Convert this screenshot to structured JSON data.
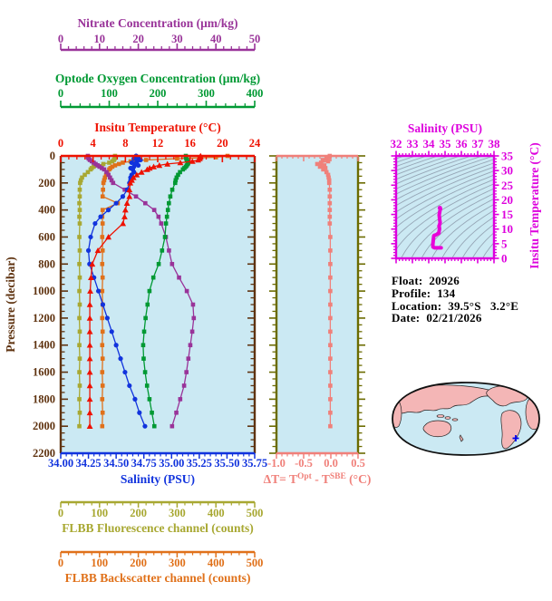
{
  "colors": {
    "nitrate": "#993399",
    "oxygen": "#009933",
    "temperature": "#ee1100",
    "pressure_axis": "#5f3310",
    "salinity": "#1133dd",
    "fluorescence": "#a8a832",
    "backscatter": "#e0711a",
    "delta_t": "#f0807a",
    "delta_y_axis": "#6b6b00",
    "ts": "#e800d8",
    "ts_axis": "#dd00dd",
    "panel_bg": "#cbe9f3",
    "contour": "#96a6b6",
    "map_land": "#f4b6b6",
    "map_ocean": "#cbe9f3",
    "map_outline": "#111111",
    "marker_blue": "#0000ee",
    "info_text": "#000000"
  },
  "figure": {
    "main_plot": {
      "pressure_axis": {
        "title": "Pressure (decibar)",
        "tick_values": [
          0,
          200,
          400,
          600,
          800,
          1000,
          1200,
          1400,
          1600,
          1800,
          2000,
          2200
        ],
        "tick_labels": [
          "0",
          "200",
          "400",
          "600",
          "800",
          "1000",
          "1200",
          "1400",
          "1600",
          "1800",
          "2000",
          "2200"
        ],
        "minor_per_gap": 3
      },
      "top_axes": [
        {
          "id": "nitrate",
          "title": "Nitrate Concentration (μm/kg)",
          "range": [
            0,
            50
          ],
          "tick_values": [
            0,
            10,
            20,
            30,
            40,
            50
          ],
          "tick_labels": [
            "0",
            "10",
            "20",
            "30",
            "40",
            "50"
          ],
          "minor_per_gap": 4
        },
        {
          "id": "oxygen",
          "title": "Optode Oxygen Concentration (μm/kg)",
          "range": [
            0,
            400
          ],
          "tick_values": [
            0,
            100,
            200,
            300,
            400
          ],
          "tick_labels": [
            "0",
            "100",
            "200",
            "300",
            "400"
          ],
          "minor_per_gap": 4
        },
        {
          "id": "temperature",
          "title": "Insitu Temperature (°C)",
          "range": [
            0,
            24
          ],
          "tick_values": [
            0,
            4,
            8,
            12,
            16,
            20,
            24
          ],
          "tick_labels": [
            "0",
            "4",
            "8",
            "12",
            "16",
            "20",
            "24"
          ],
          "minor_per_gap": 3
        }
      ],
      "bottom_axes": [
        {
          "id": "salinity",
          "title": "Salinity (PSU)",
          "range": [
            34.0,
            35.75
          ],
          "tick_values": [
            34.0,
            34.25,
            34.5,
            34.75,
            35.0,
            35.25,
            35.5,
            35.75
          ],
          "tick_labels": [
            "34.00",
            "34.25",
            "34.50",
            "34.75",
            "35.00",
            "35.25",
            "35.50",
            "35.75"
          ],
          "minor_per_gap": 4
        },
        {
          "id": "fluorescence",
          "title": "FLBB Fluorescence channel (counts)",
          "range": [
            0,
            500
          ],
          "tick_values": [
            0,
            100,
            200,
            300,
            400,
            500
          ],
          "tick_labels": [
            "0",
            "100",
            "200",
            "300",
            "400",
            "500"
          ],
          "minor_per_gap": 4
        },
        {
          "id": "backscatter",
          "title": "FLBB Backscatter channel (counts)",
          "range": [
            0,
            500
          ],
          "tick_values": [
            0,
            100,
            200,
            300,
            400,
            500
          ],
          "tick_labels": [
            "0",
            "100",
            "200",
            "300",
            "400",
            "500"
          ],
          "minor_per_gap": 4
        }
      ]
    },
    "delta_panel": {
      "x_range": [
        -1.0,
        0.5
      ],
      "tick_values": [
        -1.0,
        -0.5,
        0.0,
        0.5
      ],
      "tick_labels": [
        "-1.0",
        "-0.5",
        "0.0",
        "0.5"
      ],
      "minor_per_gap": 4,
      "title_parts": {
        "t1": "ΔT= T",
        "sup1": "Opt",
        "t2": " - T",
        "sup2": "SBE",
        "t3": " (°C)"
      }
    },
    "ts_panel": {
      "x_axis": {
        "title": "Salinity (PSU)",
        "range": [
          32,
          38
        ],
        "tick_values": [
          32,
          33,
          34,
          35,
          36,
          37,
          38
        ],
        "tick_labels": [
          "32",
          "33",
          "34",
          "35",
          "36",
          "37",
          "38"
        ],
        "minor_per_gap": 4
      },
      "y_axis": {
        "title": "Insitu Temperature (°C)",
        "range": [
          0,
          35
        ],
        "tick_values": [
          0,
          5,
          10,
          15,
          20,
          25,
          30,
          35
        ],
        "tick_labels": [
          "0",
          "5",
          "10",
          "15",
          "20",
          "25",
          "30",
          "35"
        ],
        "minor_per_gap": 4
      },
      "contour_sigma": {
        "min": 18,
        "max": 31,
        "step": 0.5
      }
    },
    "info": {
      "lines": [
        {
          "label": "Float:",
          "value": "20926"
        },
        {
          "label": "Profile:",
          "value": "134"
        },
        {
          "label": "Location:",
          "value": "39.5°S   3.2°E"
        },
        {
          "label": "Date:",
          "value": "02/21/2026"
        }
      ]
    }
  },
  "chart_data": {
    "type": "line",
    "description": "Argo float vertical profiles vs pressure (left), Optode-SBE temperature difference vs pressure (middle), T-S diagram with density contours (right), float location map (bottom right)",
    "pressure_db": [
      0,
      10,
      20,
      30,
      40,
      50,
      60,
      70,
      80,
      90,
      100,
      120,
      140,
      160,
      180,
      200,
      250,
      300,
      350,
      400,
      450,
      500,
      600,
      700,
      800,
      900,
      1000,
      1100,
      1200,
      1300,
      1400,
      1500,
      1600,
      1700,
      1800,
      1900,
      2000
    ],
    "series": [
      {
        "name": "Insitu Temperature (°C)",
        "color_key": "temperature",
        "marker": "triangle",
        "x_range": [
          0,
          24
        ],
        "values": [
          17.3,
          17.3,
          17.2,
          17.0,
          16.3,
          14.8,
          13.2,
          12.2,
          11.5,
          11.0,
          10.7,
          10.0,
          9.4,
          9.0,
          8.8,
          8.6,
          8.5,
          8.5,
          8.2,
          8.0,
          7.9,
          7.7,
          5.9,
          4.6,
          3.9,
          3.75,
          3.65,
          3.6,
          3.6,
          3.6,
          3.6,
          3.6,
          3.6,
          3.6,
          3.6,
          3.6,
          3.6
        ]
      },
      {
        "name": "Salinity (PSU)",
        "color_key": "salinity",
        "marker": "circle",
        "x_range": [
          34.0,
          35.75
        ],
        "values": [
          34.68,
          34.7,
          34.66,
          34.72,
          34.69,
          34.64,
          34.67,
          34.7,
          34.66,
          34.63,
          34.65,
          34.66,
          34.64,
          34.63,
          34.63,
          34.62,
          34.6,
          34.56,
          34.5,
          34.43,
          34.36,
          34.31,
          34.27,
          34.25,
          34.26,
          34.3,
          34.34,
          34.38,
          34.42,
          34.46,
          34.5,
          34.54,
          34.58,
          34.62,
          34.67,
          34.71,
          34.76
        ]
      },
      {
        "name": "Nitrate Concentration (μm/kg)",
        "color_key": "nitrate",
        "marker": "square",
        "x_range": [
          0,
          50
        ],
        "values": [
          7.0,
          7.0,
          7.2,
          7.5,
          8.0,
          8.5,
          9.0,
          9.5,
          10.0,
          10.6,
          11.2,
          11.8,
          12.3,
          12.7,
          13.1,
          13.5,
          16.5,
          19.4,
          21.8,
          24.1,
          25.2,
          25.9,
          27.1,
          27.9,
          28.7,
          30.5,
          32.5,
          34.1,
          34.3,
          33.9,
          33.4,
          32.9,
          32.4,
          31.8,
          30.8,
          29.8,
          28.7
        ]
      },
      {
        "name": "Optode Oxygen Concentration (μm/kg)",
        "color_key": "oxygen",
        "marker": "square",
        "x_range": [
          0,
          400
        ],
        "values": [
          258,
          258,
          259,
          260,
          262,
          263,
          262,
          260,
          258,
          255,
          252,
          246,
          242,
          239,
          237,
          236,
          230,
          226,
          223,
          221,
          219,
          217,
          215,
          209,
          202,
          191,
          183,
          179,
          175,
          172,
          170,
          171,
          174,
          178,
          183,
          188,
          193
        ]
      },
      {
        "name": "FLBB Fluorescence channel (counts)",
        "color_key": "fluorescence",
        "marker": "square",
        "x_range": [
          0,
          500
        ],
        "values": [
          140,
          140,
          139,
          137,
          133,
          125,
          110,
          95,
          85,
          80,
          77,
          70,
          62,
          55,
          52,
          50,
          49,
          49,
          48,
          49,
          48,
          49,
          48,
          49,
          48,
          49,
          48,
          49,
          48,
          49,
          48,
          49,
          48,
          49,
          48,
          49,
          48
        ]
      },
      {
        "name": "FLBB Backscatter channel (counts)",
        "color_key": "backscatter",
        "marker": "square",
        "x_range": [
          0,
          500
        ],
        "values": [
          430,
          400,
          300,
          220,
          180,
          160,
          150,
          140,
          133,
          128,
          125,
          120,
          117,
          114,
          112,
          110,
          109,
          108,
          147,
          108,
          107,
          108,
          107,
          108,
          107,
          108,
          107,
          108,
          107,
          108,
          107,
          108,
          107,
          108,
          107,
          108,
          107
        ]
      }
    ],
    "delta_t_series": {
      "name": "ΔT = T(Opt) - T(SBE) (°C)",
      "x_range": [
        -1.0,
        0.5
      ],
      "values": [
        -0.02,
        -0.04,
        -0.08,
        -0.15,
        -0.05,
        -0.18,
        -0.25,
        -0.12,
        -0.2,
        -0.1,
        -0.14,
        -0.08,
        -0.05,
        -0.04,
        -0.03,
        -0.03,
        -0.02,
        -0.02,
        -0.02,
        -0.02,
        -0.02,
        -0.02,
        -0.01,
        -0.01,
        -0.01,
        -0.01,
        -0.01,
        -0.01,
        -0.01,
        -0.01,
        -0.01,
        -0.01,
        -0.01,
        -0.01,
        -0.01,
        -0.01,
        -0.01
      ]
    },
    "ts_curve": "temperature vs salinity derived from the two profile series above"
  }
}
